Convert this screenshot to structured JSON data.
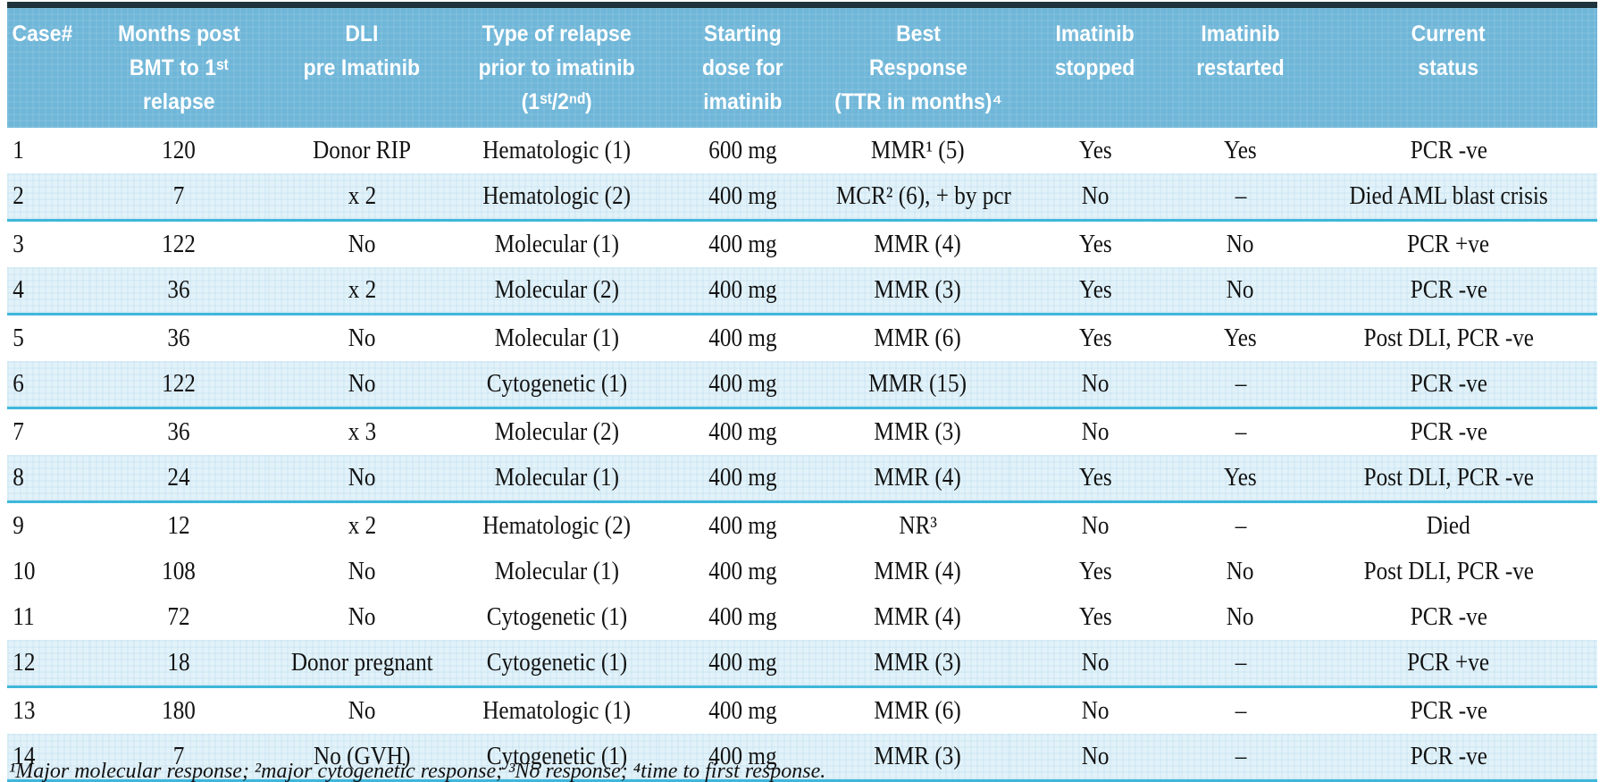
{
  "table": {
    "columns": [
      {
        "key": "case",
        "label": "Case#"
      },
      {
        "key": "months",
        "label": "Months post\nBMT to 1ˢᵗ\nrelapse"
      },
      {
        "key": "dli",
        "label": "DLI\npre Imatinib"
      },
      {
        "key": "type",
        "label": "Type of relapse\nprior to imatinib\n(1ˢᵗ/2ⁿᵈ)"
      },
      {
        "key": "dose",
        "label": "Starting\ndose for\nimatinib"
      },
      {
        "key": "response",
        "label": "Best\nResponse\n(TTR in months)⁴"
      },
      {
        "key": "stopped",
        "label": "Imatinib\nstopped"
      },
      {
        "key": "restarted",
        "label": "Imatinib\nrestarted"
      },
      {
        "key": "status",
        "label": "Current\nstatus"
      }
    ],
    "rows": [
      {
        "shaded": false,
        "cells": [
          "1",
          "120",
          "Donor RIP",
          "Hematologic (1)",
          "600 mg",
          "MMR¹ (5)",
          "Yes",
          "Yes",
          "PCR -ve"
        ]
      },
      {
        "shaded": true,
        "cells": [
          "2",
          "7",
          "x 2",
          "Hematologic (2)",
          "400 mg",
          "MCR² (6), + by pcr",
          "No",
          "–",
          "Died AML blast crisis"
        ]
      },
      {
        "shaded": false,
        "cells": [
          "3",
          "122",
          "No",
          "Molecular (1)",
          "400 mg",
          "MMR (4)",
          "Yes",
          "No",
          "PCR +ve"
        ]
      },
      {
        "shaded": true,
        "cells": [
          "4",
          "36",
          "x 2",
          "Molecular (2)",
          "400 mg",
          "MMR (3)",
          "Yes",
          "No",
          "PCR -ve"
        ]
      },
      {
        "shaded": false,
        "cells": [
          "5",
          "36",
          "No",
          "Molecular (1)",
          "400 mg",
          "MMR (6)",
          "Yes",
          "Yes",
          "Post DLI, PCR -ve"
        ]
      },
      {
        "shaded": true,
        "cells": [
          "6",
          "122",
          "No",
          "Cytogenetic (1)",
          "400 mg",
          "MMR (15)",
          "No",
          "–",
          "PCR -ve"
        ]
      },
      {
        "shaded": false,
        "cells": [
          "7",
          "36",
          "x 3",
          "Molecular (2)",
          "400 mg",
          "MMR (3)",
          "No",
          "–",
          "PCR -ve"
        ]
      },
      {
        "shaded": true,
        "cells": [
          "8",
          "24",
          "No",
          "Molecular (1)",
          "400 mg",
          "MMR (4)",
          "Yes",
          "Yes",
          "Post DLI, PCR -ve"
        ]
      },
      {
        "shaded": false,
        "cells": [
          "9",
          "12",
          "x 2",
          "Hematologic (2)",
          "400 mg",
          "NR³",
          "No",
          "–",
          "Died"
        ]
      },
      {
        "shaded": false,
        "cells": [
          "10",
          "108",
          "No",
          "Molecular (1)",
          "400 mg",
          "MMR (4)",
          "Yes",
          "No",
          "Post DLI, PCR -ve"
        ]
      },
      {
        "shaded": false,
        "cells": [
          "11",
          "72",
          "No",
          "Cytogenetic (1)",
          "400 mg",
          "MMR (4)",
          "Yes",
          "No",
          "PCR -ve"
        ]
      },
      {
        "shaded": true,
        "cells": [
          "12",
          "18",
          "Donor pregnant",
          "Cytogenetic (1)",
          "400 mg",
          "MMR (3)",
          "No",
          "–",
          "PCR +ve"
        ]
      },
      {
        "shaded": false,
        "cells": [
          "13",
          "180",
          "No",
          "Hematologic (1)",
          "400 mg",
          "MMR (6)",
          "No",
          "–",
          "PCR -ve"
        ]
      },
      {
        "shaded": true,
        "cells": [
          "14",
          "7",
          "No (GVH)",
          "Cytogenetic (1)",
          "400 mg",
          "MMR (3)",
          "No",
          "–",
          "PCR -ve"
        ]
      }
    ]
  },
  "footnote": "¹Major molecular response; ²major cytogenetic response; ³No response; ⁴time to first response.",
  "colors": {
    "header_bg": "#6fb6d8",
    "shaded_row_bg": "#e2f2f9",
    "separator": "#3eb7da",
    "top_bar": "#1f333c",
    "header_text": "#ffffff",
    "body_text": "#121212"
  }
}
